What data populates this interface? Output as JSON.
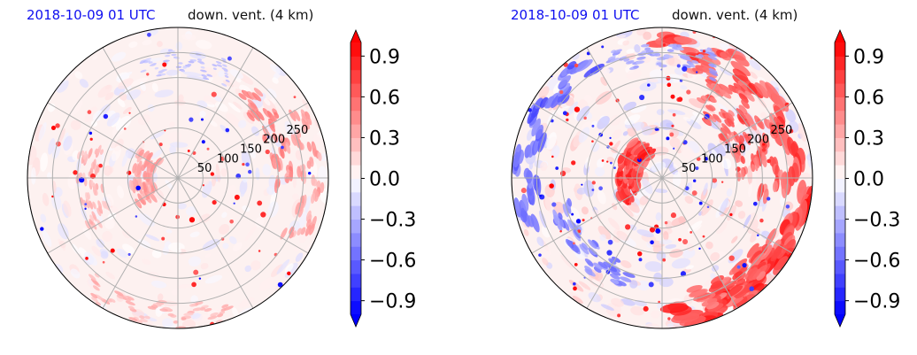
{
  "chart_data": [
    {
      "type": "polar-field",
      "title_left": "2018-10-09 01 UTC",
      "title_right": "down. vent. (4 km)",
      "radial_ticks": [
        50,
        100,
        150,
        200,
        250
      ],
      "colorbar": {
        "vmin": -1.0,
        "vmax": 1.0,
        "ticks": [
          -0.9,
          -0.6,
          -0.3,
          0.0,
          0.3,
          0.6,
          0.9
        ],
        "tick_labels": [
          "−0.9",
          "−0.6",
          "−0.3",
          "0.0",
          "0.3",
          "0.6",
          "0.9"
        ],
        "extend": "both",
        "colormap": "bwr",
        "levels": 20
      },
      "grid": true,
      "intensity": "weak"
    },
    {
      "type": "polar-field",
      "title_left": "2018-10-09 01 UTC",
      "title_right": "down. vent. (4 km)",
      "radial_ticks": [
        50,
        100,
        150,
        200,
        250
      ],
      "colorbar": {
        "vmin": -1.0,
        "vmax": 1.0,
        "ticks": [
          -0.9,
          -0.6,
          -0.3,
          0.0,
          0.3,
          0.6,
          0.9
        ],
        "tick_labels": [
          "−0.9",
          "−0.6",
          "−0.3",
          "0.0",
          "0.3",
          "0.6",
          "0.9"
        ],
        "extend": "both",
        "colormap": "bwr",
        "levels": 20
      },
      "grid": true,
      "intensity": "strong"
    }
  ]
}
